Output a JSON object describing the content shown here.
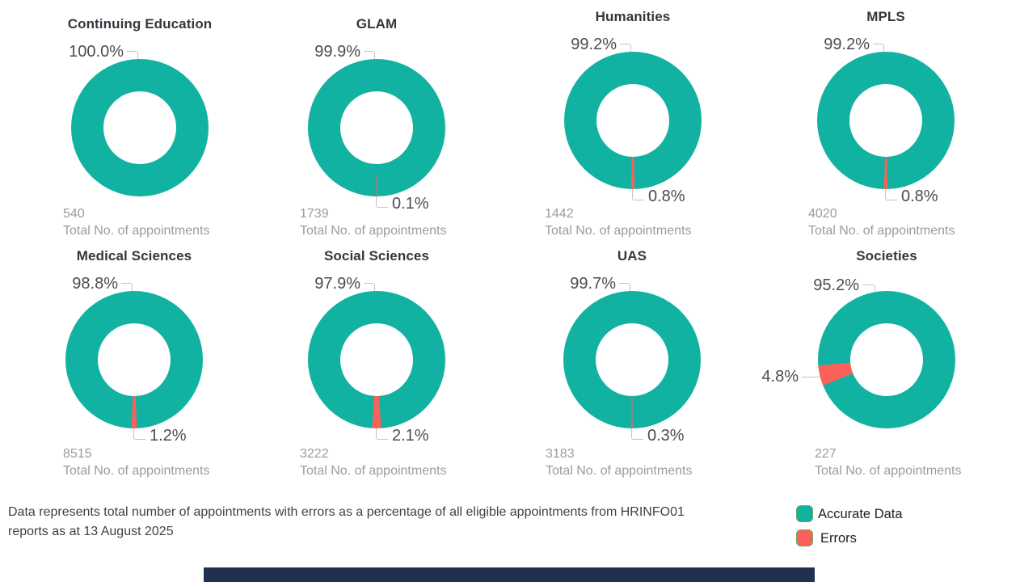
{
  "report": {
    "footnote_line1": "Data represents total number of appointments with errors as a percentage of all eligible appointments from HRINFO01",
    "footnote_line2": "reports as at 13 August 2025",
    "total_caption": "Total No. of appointments"
  },
  "legend": {
    "accurate_label": "Accurate Data",
    "errors_label": "Errors",
    "accurate_color": "#11B2A1",
    "errors_color": "#FA615B"
  },
  "chart_data": {
    "type": "pie",
    "variant": "donut",
    "series_labels": [
      "Accurate Data",
      "Errors"
    ],
    "legend_position": "bottom-right",
    "charts": [
      {
        "title": "Continuing Education",
        "accurate_pct": 100.0,
        "errors_pct": 0.0,
        "accurate_label": "100.0%",
        "errors_label": null,
        "total": "540",
        "error_slice_center_deg": 180
      },
      {
        "title": "GLAM",
        "accurate_pct": 99.9,
        "errors_pct": 0.1,
        "accurate_label": "99.9%",
        "errors_label": "0.1%",
        "total": "1739",
        "error_slice_center_deg": 180
      },
      {
        "title": "Humanities",
        "accurate_pct": 99.2,
        "errors_pct": 0.8,
        "accurate_label": "99.2%",
        "errors_label": "0.8%",
        "total": "1442",
        "error_slice_center_deg": 180
      },
      {
        "title": "MPLS",
        "accurate_pct": 99.2,
        "errors_pct": 0.8,
        "accurate_label": "99.2%",
        "errors_label": "0.8%",
        "total": "4020",
        "error_slice_center_deg": 180
      },
      {
        "title": "Medical Sciences",
        "accurate_pct": 98.8,
        "errors_pct": 1.2,
        "accurate_label": "98.8%",
        "errors_label": "1.2%",
        "total": "8515",
        "error_slice_center_deg": 180
      },
      {
        "title": "Social Sciences",
        "accurate_pct": 97.9,
        "errors_pct": 2.1,
        "accurate_label": "97.9%",
        "errors_label": "2.1%",
        "total": "3222",
        "error_slice_center_deg": 180
      },
      {
        "title": "UAS",
        "accurate_pct": 99.7,
        "errors_pct": 0.3,
        "accurate_label": "99.7%",
        "errors_label": "0.3%",
        "total": "3183",
        "error_slice_center_deg": 180
      },
      {
        "title": "Societies",
        "accurate_pct": 95.2,
        "errors_pct": 4.8,
        "accurate_label": "95.2%",
        "errors_label": "4.8%",
        "total": "227",
        "error_slice_center_deg": 256.6
      }
    ]
  }
}
